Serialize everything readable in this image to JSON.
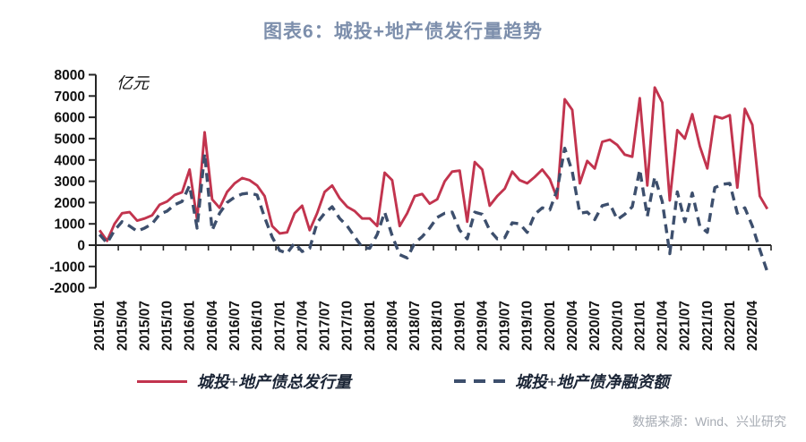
{
  "figure": {
    "title": "图表6：城投+地产债发行量趋势",
    "unit_label": "亿元",
    "source": "数据来源：Wind、兴业研究"
  },
  "colors": {
    "title_text": "#7d8fac",
    "issuance_line": "#c2344e",
    "net_line": "#3d4f6d",
    "axis": "#262626",
    "legend_text": "#1b2536",
    "source_text": "#a6abb3"
  },
  "legend": {
    "items": [
      {
        "label": "城投+地产债总发行量",
        "style": "solid"
      },
      {
        "label": "城投+地产债净融资额",
        "style": "dashed"
      }
    ]
  },
  "chart_data": {
    "type": "line",
    "title": "图表6：城投+地产债发行量趋势",
    "ylabel": "亿元",
    "xlabel": "",
    "ylim": [
      -2000,
      8000
    ],
    "y_ticks": [
      8000,
      7000,
      6000,
      5000,
      4000,
      3000,
      2000,
      1000,
      0,
      -1000,
      -2000
    ],
    "grid": false,
    "legend_position": "bottom",
    "x": [
      "2015/01",
      "2015/02",
      "2015/03",
      "2015/04",
      "2015/05",
      "2015/06",
      "2015/07",
      "2015/08",
      "2015/09",
      "2015/10",
      "2015/11",
      "2015/12",
      "2016/01",
      "2016/02",
      "2016/03",
      "2016/04",
      "2016/05",
      "2016/06",
      "2016/07",
      "2016/08",
      "2016/09",
      "2016/10",
      "2016/11",
      "2016/12",
      "2017/01",
      "2017/02",
      "2017/03",
      "2017/04",
      "2017/05",
      "2017/06",
      "2017/07",
      "2017/08",
      "2017/09",
      "2017/10",
      "2017/11",
      "2017/12",
      "2018/01",
      "2018/02",
      "2018/03",
      "2018/04",
      "2018/05",
      "2018/06",
      "2018/07",
      "2018/08",
      "2018/09",
      "2018/10",
      "2018/11",
      "2018/12",
      "2019/01",
      "2019/02",
      "2019/03",
      "2019/04",
      "2019/05",
      "2019/06",
      "2019/07",
      "2019/08",
      "2019/09",
      "2019/10",
      "2019/11",
      "2019/12",
      "2020/01",
      "2020/02",
      "2020/03",
      "2020/04",
      "2020/05",
      "2020/06",
      "2020/07",
      "2020/08",
      "2020/09",
      "2020/10",
      "2020/11",
      "2020/12",
      "2021/01",
      "2021/02",
      "2021/03",
      "2021/04",
      "2021/05",
      "2021/06",
      "2021/07",
      "2021/08",
      "2021/09",
      "2021/10",
      "2021/11",
      "2021/12",
      "2022/01",
      "2022/02",
      "2022/03",
      "2022/04",
      "2022/05",
      "2022/06"
    ],
    "x_tick_labels": [
      "2015/01",
      "2015/04",
      "2015/07",
      "2015/10",
      "2016/01",
      "2016/04",
      "2016/07",
      "2016/10",
      "2017/01",
      "2017/04",
      "2017/07",
      "2017/10",
      "2018/01",
      "2018/04",
      "2018/07",
      "2018/10",
      "2019/01",
      "2019/04",
      "2019/07",
      "2019/10",
      "2020/01",
      "2020/04",
      "2020/07",
      "2020/10",
      "2021/01",
      "2021/04",
      "2021/07",
      "2021/10",
      "2022/01",
      "2022/04"
    ],
    "series": [
      {
        "name": "城投+地产债总发行量",
        "style": "solid",
        "color": "#c2344e",
        "values": [
          700,
          200,
          1000,
          1500,
          1550,
          1150,
          1250,
          1400,
          1900,
          2050,
          2350,
          2480,
          3550,
          1200,
          5300,
          2150,
          1750,
          2500,
          2900,
          3150,
          3050,
          2800,
          2300,
          900,
          550,
          600,
          1500,
          1850,
          700,
          1500,
          2500,
          2800,
          2200,
          1800,
          1600,
          1250,
          1250,
          900,
          3400,
          3050,
          900,
          1500,
          2300,
          2400,
          1950,
          2150,
          3000,
          3450,
          3500,
          1100,
          3900,
          3550,
          1850,
          2300,
          2650,
          3450,
          3050,
          2900,
          3200,
          3550,
          3100,
          2200,
          6850,
          6350,
          2900,
          3950,
          3600,
          4850,
          4950,
          4700,
          4250,
          4150,
          6900,
          2800,
          7400,
          6700,
          2100,
          5400,
          5000,
          6150,
          4650,
          3600,
          6050,
          5950,
          6100,
          2700,
          6400,
          5650,
          2300,
          1700
        ]
      },
      {
        "name": "城投+地产债净融资额",
        "style": "dashed",
        "color": "#3d4f6d",
        "values": [
          500,
          100,
          700,
          1100,
          900,
          650,
          800,
          1000,
          1450,
          1600,
          1900,
          2050,
          2800,
          800,
          4300,
          700,
          1500,
          2000,
          2250,
          2400,
          2450,
          2350,
          1300,
          380,
          -250,
          -380,
          100,
          -300,
          -150,
          1050,
          1500,
          1800,
          1250,
          900,
          400,
          -100,
          -150,
          500,
          1550,
          450,
          -450,
          -600,
          100,
          400,
          800,
          1300,
          1500,
          1550,
          700,
          300,
          1550,
          1450,
          700,
          300,
          350,
          1050,
          1000,
          600,
          1450,
          1750,
          1650,
          2600,
          4550,
          3450,
          1500,
          1550,
          1200,
          1850,
          1950,
          1200,
          1450,
          1800,
          3550,
          1350,
          3200,
          2050,
          -400,
          2500,
          1100,
          2450,
          900,
          600,
          2700,
          2850,
          2900,
          1500,
          1750,
          900,
          -200,
          -1250
        ]
      }
    ]
  }
}
